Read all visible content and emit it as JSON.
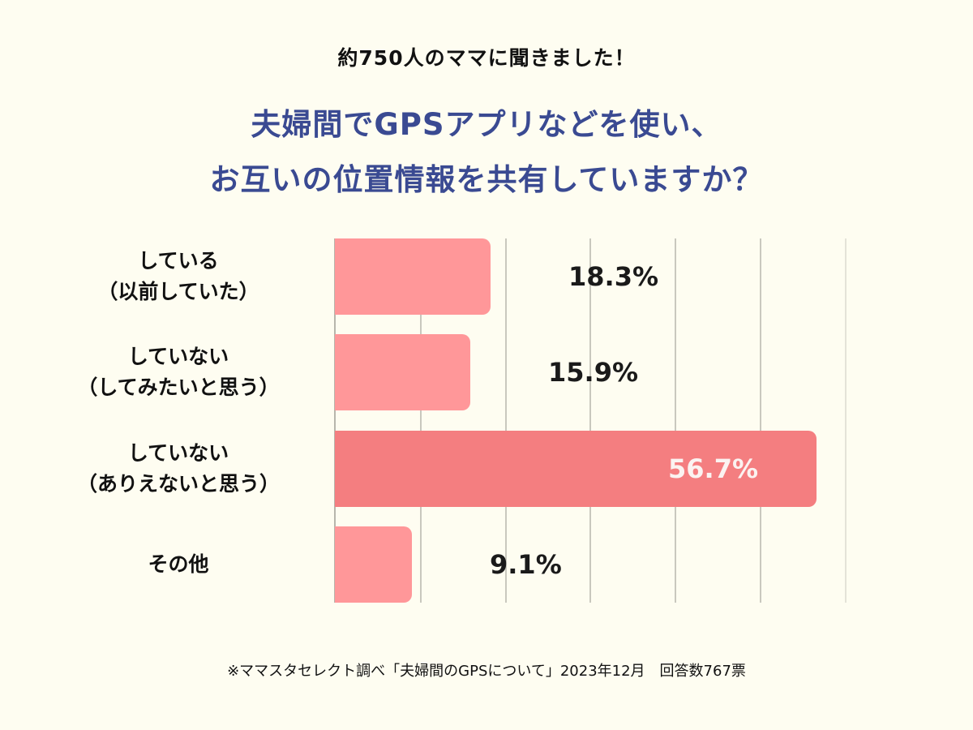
{
  "header": {
    "subtitle": "約750人のママに聞きました！",
    "title_line1": "夫婦間でGPSアプリなどを使い、",
    "title_line2": "お互いの位置情報を共有していますか？"
  },
  "footnote": "※ママスタセレクト調べ「夫婦間のGPSについて」2023年12月　回答数767票",
  "colors": {
    "background": "#FEFDF1",
    "title": "#3A4A92",
    "bar": "#FF9799",
    "bar_highlight": "#F47E80",
    "label_dark": "#1A1A1A",
    "label_light": "#FBF3F1"
  },
  "chart_data": {
    "type": "bar",
    "orientation": "horizontal",
    "title": "夫婦間でGPSアプリなどを使い、お互いの位置情報を共有していますか？",
    "subtitle": "約750人のママに聞きました！",
    "categories": [
      "している（以前していた）",
      "していない（してみたいと思う）",
      "していない（ありえないと思う）",
      "その他"
    ],
    "category_lines": [
      [
        "している",
        "（以前していた）"
      ],
      [
        "していない",
        "（してみたいと思う）"
      ],
      [
        "していない",
        "（ありえないと思う）"
      ],
      [
        "その他"
      ]
    ],
    "values": [
      18.3,
      15.9,
      56.7,
      9.1
    ],
    "value_labels": [
      "18.3%",
      "15.9%",
      "56.7%",
      "9.1%"
    ],
    "highlight_index": 2,
    "xlabel": "",
    "ylabel": "",
    "xlim": [
      0,
      60
    ],
    "grid": true,
    "grid_step": 10,
    "legend": null,
    "unit": "%",
    "source": "※ママスタセレクト調べ「夫婦間のGPSについて」2023年12月　回答数767票"
  }
}
